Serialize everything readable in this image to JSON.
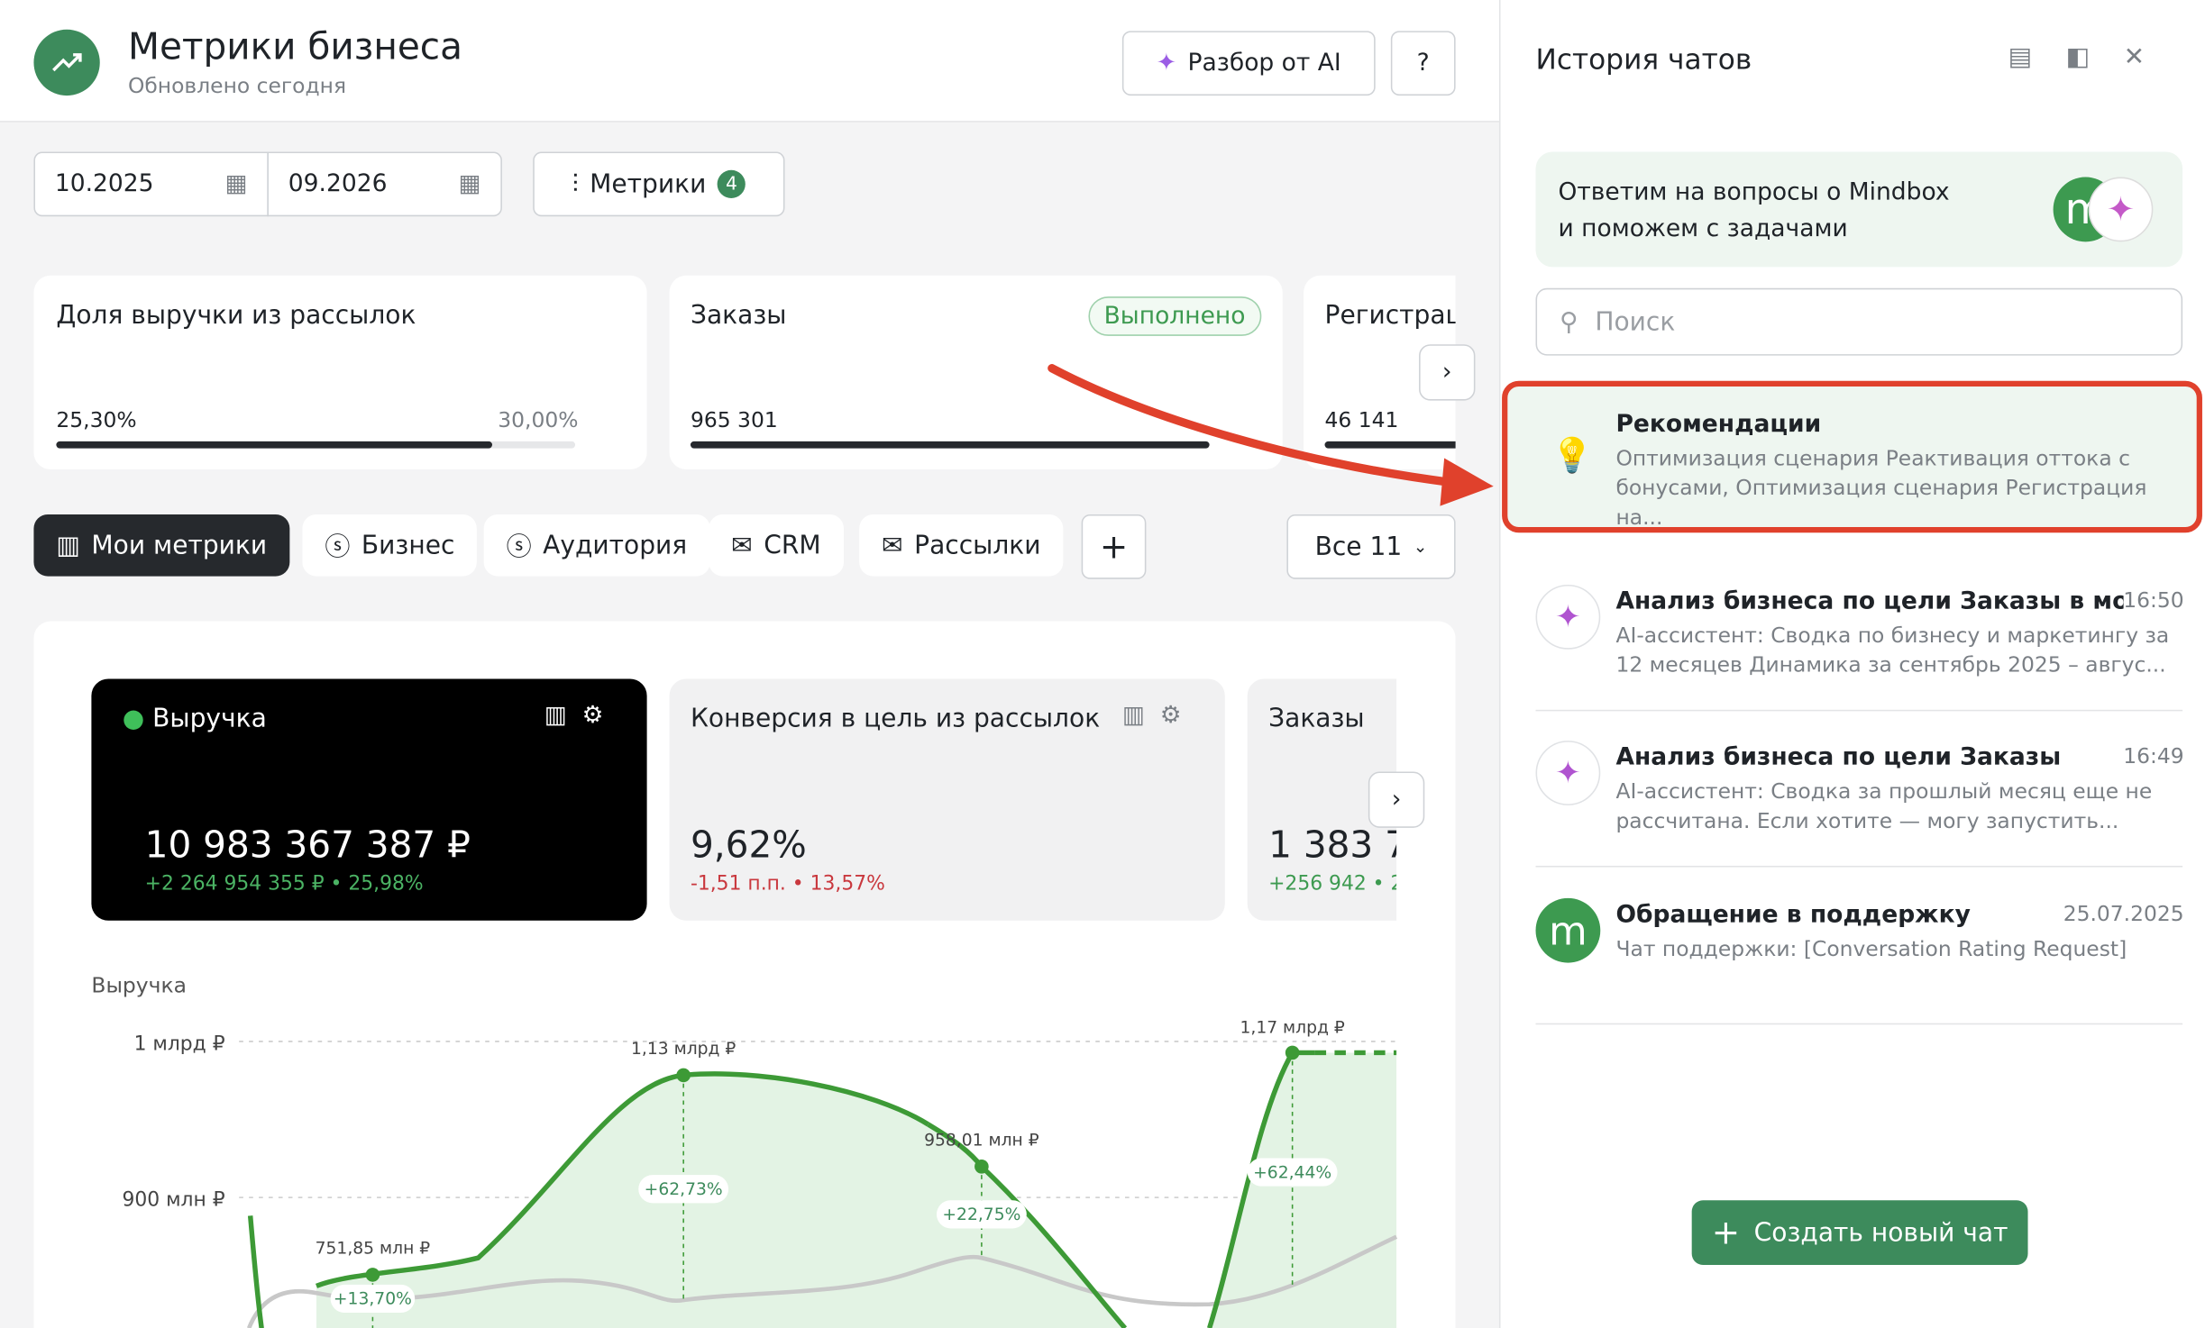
{
  "header": {
    "title": "Метрики бизнеса",
    "subtitle": "Обновлено сегодня",
    "ai_button": "Разбор от AI"
  },
  "filters": {
    "date_from": "10.2025",
    "date_to": "09.2026",
    "metrics_button": "Метрики",
    "metrics_count": "4"
  },
  "summary_cards": [
    {
      "title": "Доля выручки из рассылок",
      "value": "25,30%",
      "target": "30,00%"
    },
    {
      "title": "Заказы",
      "status": "Выполнено",
      "value": "965 301"
    },
    {
      "title": "Регистрац",
      "value": "46 141"
    }
  ],
  "tabs": {
    "items": [
      "Мои метрики",
      "Бизнес",
      "Аудитория",
      "CRM",
      "Рассылки"
    ],
    "all_button": "Все 11"
  },
  "metric_cards": [
    {
      "title": "Выручка",
      "value": "10 983 367 387 ₽",
      "delta": "+2 264 954 355 ₽ • 25,98%"
    },
    {
      "title": "Конверсия в цель из рассылок",
      "value": "9,62%",
      "delta": "-1,51 п.п. • 13,57%"
    },
    {
      "title": "Заказы",
      "value": "1 383 7",
      "delta": "+256 942 • 2"
    }
  ],
  "chart": {
    "label": "Выручка",
    "y_labels": [
      "1 млрд ₽",
      "900 млн ₽"
    ],
    "points": [
      {
        "value": "751,85 млн ₽",
        "change": "+13,70%"
      },
      {
        "value": "1,13 млрд ₽",
        "change": "+62,73%"
      },
      {
        "value": "958,01 млн ₽",
        "change": "+22,75%"
      },
      {
        "value": "1,17 млрд ₽",
        "change": "+62,44%"
      }
    ]
  },
  "sidebar": {
    "title": "История чатов",
    "promo": [
      "Ответим на вопросы о Mindbox",
      "и поможем с задачами"
    ],
    "search_placeholder": "Поиск",
    "chats": [
      {
        "title": "Рекомендации",
        "preview": "Оптимизация сценария Реактивация оттока с бонусами, Оптимизация сценария Регистрация на..."
      },
      {
        "title": "Анализ бизнеса по цели Заказы в моб...",
        "time": "16:50",
        "preview": "AI-ассистент: Сводка по бизнесу и маркетингу за 12 месяцев Динамика за сентябрь 2025 – авгус..."
      },
      {
        "title": "Анализ бизнеса по цели Заказы",
        "time": "16:49",
        "preview": "AI-ассистент: Сводка за прошлый месяц еще не рассчитана. Если хотите — могу запустить..."
      },
      {
        "title": "Обращение в поддержку",
        "time": "25.07.2025",
        "preview": "Чат поддержки: [Conversation Rating Request]"
      }
    ],
    "new_chat_button": "Создать новый чат"
  }
}
